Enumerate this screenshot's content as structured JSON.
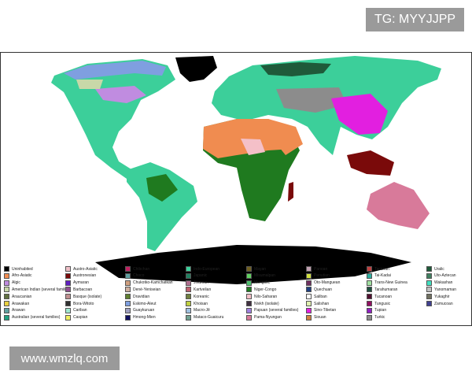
{
  "watermarks": {
    "top_right": "TG: MYYJJPP",
    "bottom_left": "www.wmzlq.com"
  },
  "map": {
    "colors": {
      "ocean": "#ffffff",
      "uninhabited": "#000000",
      "indo_european": "#3ccf9a",
      "afro_asiatic": "#f08c50",
      "niger_congo": "#1f7a1f",
      "sino_tibetan": "#e21fe0",
      "turkic": "#8c8c8c",
      "austronesian": "#7a0a0a",
      "pama_nyungan": "#d87a9a",
      "eskimo_aleut": "#7f9fe0",
      "algic": "#c08ce0",
      "uralic": "#1f5a3a",
      "nilo_saharan": "#f4c0c8"
    }
  },
  "legend": [
    {
      "label": "Uninhabited",
      "color": "#000000"
    },
    {
      "label": "Afro-Asiatic",
      "color": "#f08c50"
    },
    {
      "label": "Algic",
      "color": "#c08ce0"
    },
    {
      "label": "American Indian (several families)",
      "color": "#c8d8a8"
    },
    {
      "label": "Araucanian",
      "color": "#607040"
    },
    {
      "label": "Arawakan",
      "color": "#e8d040"
    },
    {
      "label": "Arawan",
      "color": "#60a0a0"
    },
    {
      "label": "Australian (several families)",
      "color": "#20a080"
    },
    {
      "label": "Austro-Asiatic",
      "color": "#f0c0c8"
    },
    {
      "label": "Austronesian",
      "color": "#7a0a0a"
    },
    {
      "label": "Aymaran",
      "color": "#6020c0"
    },
    {
      "label": "Barbacoan",
      "color": "#905090"
    },
    {
      "label": "Basque (isolate)",
      "color": "#c09090"
    },
    {
      "label": "Bora-Witoto",
      "color": "#303030"
    },
    {
      "label": "Cariban",
      "color": "#a0e8d0"
    },
    {
      "label": "Caspian",
      "color": "#f0f060"
    },
    {
      "label": "Chibchan",
      "color": "#c02060"
    },
    {
      "label": "Choco",
      "color": "#60a0a0"
    },
    {
      "label": "Chukotko-Kamchatkan",
      "color": "#d0a080"
    },
    {
      "label": "Dené-Yeniseian",
      "color": "#d0b0a0"
    },
    {
      "label": "Dravidian",
      "color": "#608030"
    },
    {
      "label": "Eskimo-Aleut",
      "color": "#7f9fe0"
    },
    {
      "label": "Guaykuruan",
      "color": "#a0a0c0"
    },
    {
      "label": "Hmong-Mien",
      "color": "#101060"
    },
    {
      "label": "Indo-European",
      "color": "#3ccf9a"
    },
    {
      "label": "Japanic",
      "color": "#208060"
    },
    {
      "label": "Jivaroan",
      "color": "#b07090"
    },
    {
      "label": "Kartvelian",
      "color": "#c06070"
    },
    {
      "label": "Koreanic",
      "color": "#708040"
    },
    {
      "label": "Khoisan",
      "color": "#c0d040"
    },
    {
      "label": "Macro-Jê",
      "color": "#a0c0e0"
    },
    {
      "label": "Mataco-Guaicuru",
      "color": "#70a090"
    },
    {
      "label": "Mayan",
      "color": "#706020"
    },
    {
      "label": "Misumalpan",
      "color": "#60d060"
    },
    {
      "label": "Mongolic",
      "color": "#50c070"
    },
    {
      "label": "Niger-Congo",
      "color": "#1f7a1f"
    },
    {
      "label": "Nilo-Saharan",
      "color": "#f4c0c8"
    },
    {
      "label": "Nivkh (isolate)",
      "color": "#403040"
    },
    {
      "label": "Papuan (several families)",
      "color": "#a080e0"
    },
    {
      "label": "Pama-Nyungan",
      "color": "#d87a9a"
    },
    {
      "label": "Panoan",
      "color": "#c0a0b0"
    },
    {
      "label": "Penutian",
      "color": "#d0e040"
    },
    {
      "label": "Oto-Manguean",
      "color": "#703060"
    },
    {
      "label": "Quechuan",
      "color": "#204080"
    },
    {
      "label": "Saliban",
      "color": "#ffffff"
    },
    {
      "label": "Salishan",
      "color": "#e0f0b0"
    },
    {
      "label": "Sino-Tibetan",
      "color": "#e21fe0"
    },
    {
      "label": "Siouan",
      "color": "#d08040"
    },
    {
      "label": "Tacanan",
      "color": "#c04040"
    },
    {
      "label": "Tai-Kadai",
      "color": "#30b0a0"
    },
    {
      "label": "Trans-New Guinea",
      "color": "#a0e0a0"
    },
    {
      "label": "Tarahumaran",
      "color": "#205040"
    },
    {
      "label": "Tucanoan",
      "color": "#501030"
    },
    {
      "label": "Tungusic",
      "color": "#901060"
    },
    {
      "label": "Tupian",
      "color": "#9020c0"
    },
    {
      "label": "Turkic",
      "color": "#8c8c8c"
    },
    {
      "label": "Uralic",
      "color": "#1f5a3a"
    },
    {
      "label": "Uto-Aztecan",
      "color": "#408060"
    },
    {
      "label": "Wakashan",
      "color": "#40e0c0"
    },
    {
      "label": "Yanomaman",
      "color": "#c0c0c0"
    },
    {
      "label": "Yukaghir",
      "color": "#707060"
    },
    {
      "label": "Zamucoan",
      "color": "#404090"
    }
  ]
}
